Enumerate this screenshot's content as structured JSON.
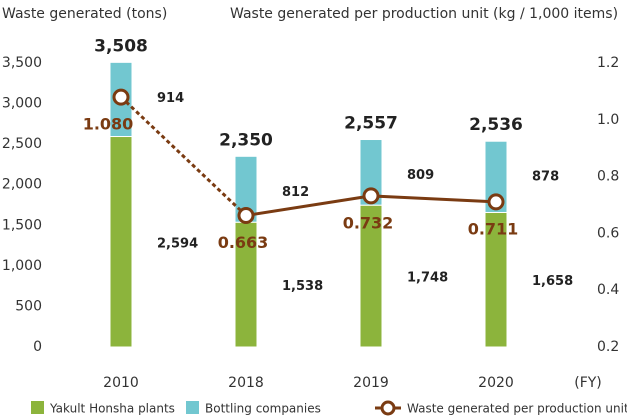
{
  "chart_data": {
    "type": "stacked_bar_line",
    "y_axis_label": "Waste generated (tons)",
    "y2_axis_label": "Waste generated per production unit (kg / 1,000 items)",
    "x_unit_label": "(FY)",
    "categories": [
      "2010",
      "2018",
      "2019",
      "2020"
    ],
    "series": [
      {
        "name": "Yakult Honsha plants",
        "color": "#8cb43c",
        "values": [
          2594,
          1538,
          1748,
          1658
        ],
        "value_labels": [
          "2,594",
          "1,538",
          "1,748",
          "1,658"
        ]
      },
      {
        "name": "Bottling companies",
        "color": "#72c7d0",
        "values": [
          914,
          812,
          809,
          878
        ],
        "value_labels": [
          "914",
          "812",
          "809",
          "878"
        ]
      },
      {
        "name": "Waste generated per production unit",
        "color": "#7a3b12",
        "axis": "y2",
        "values": [
          1.08,
          0.663,
          0.732,
          0.711
        ],
        "value_labels": [
          "1.080",
          "0.663",
          "0.732",
          "0.711"
        ],
        "dash_first_segment": true
      }
    ],
    "totals": {
      "values": [
        3508,
        2350,
        2557,
        2536
      ],
      "value_labels": [
        "3,508",
        "2,350",
        "2,557",
        "2,536"
      ]
    },
    "ylim": [
      0,
      3500
    ],
    "yticks": [
      0,
      500,
      {
        "value": 1000,
        "label": "1,000"
      },
      {
        "value": 1500,
        "label": "1,500"
      },
      {
        "value": 2000,
        "label": "2,000"
      },
      {
        "value": 2500,
        "label": "2,500"
      },
      {
        "value": 3000,
        "label": "3,000"
      },
      {
        "value": 3500,
        "label": "3,500"
      }
    ],
    "y2lim": [
      0.2,
      1.2
    ],
    "y2ticks": [
      0.2,
      0.4,
      0.6,
      0.8,
      {
        "value": 1.0,
        "label": "1.0"
      },
      1.2
    ]
  }
}
